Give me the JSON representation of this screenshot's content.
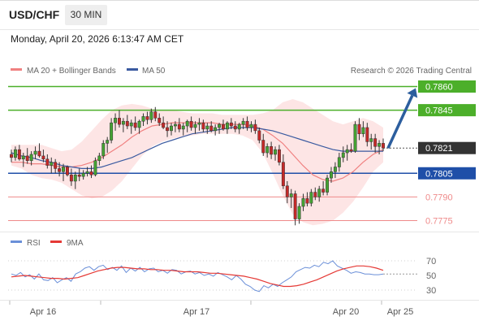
{
  "header": {
    "symbol": "USD/CHF",
    "interval": "30 MIN"
  },
  "timestamp": "Monday, April 20, 2026 6:13:47 AM CET",
  "legend": {
    "ma20_bb": "MA 20 + Bollinger Bands",
    "ma50": "MA 50"
  },
  "copyright": "Research © 2026 Trading Central",
  "rsi_legend": {
    "rsi": "RSI",
    "ma9": "9MA"
  },
  "colors": {
    "bull": "#44a333",
    "bear": "#c62828",
    "ma20": "#f08080",
    "ma50": "#3a5aa0",
    "band": "#fde0e0",
    "resistance": "#4caf2a",
    "support_blue": "#1f4fa8",
    "support_red": "#ef8a8a",
    "arrow": "#2c5e9e",
    "rsi": "#6a8fd8",
    "rsi_ma": "#e53935"
  },
  "chart_data": [
    {
      "type": "candlestick",
      "title": "USD/CHF",
      "ylim": [
        0.7765,
        0.7868
      ],
      "x_ticks": [
        "Apr 16",
        "Apr 17",
        "Apr 20",
        "Apr 25"
      ],
      "current_price": "0.7821",
      "levels": [
        {
          "value": 0.786,
          "label": "0.7860",
          "kind": "resistance"
        },
        {
          "value": 0.7845,
          "label": "0.7845",
          "kind": "resistance"
        },
        {
          "value": 0.7805,
          "label": "0.7805",
          "kind": "support_blue"
        },
        {
          "value": 0.779,
          "label": "0.7790",
          "kind": "support_red"
        },
        {
          "value": 0.7775,
          "label": "0.7775",
          "kind": "support_red"
        }
      ],
      "ohlc": [
        [
          0.7817,
          0.782,
          0.7812,
          0.7815
        ],
        [
          0.7815,
          0.7822,
          0.7813,
          0.782
        ],
        [
          0.782,
          0.7823,
          0.7813,
          0.7814
        ],
        [
          0.7814,
          0.7818,
          0.7809,
          0.7816
        ],
        [
          0.7816,
          0.7821,
          0.7811,
          0.7813
        ],
        [
          0.7813,
          0.7819,
          0.781,
          0.7817
        ],
        [
          0.7817,
          0.7822,
          0.7814,
          0.7819
        ],
        [
          0.7819,
          0.7824,
          0.7815,
          0.7816
        ],
        [
          0.7816,
          0.782,
          0.7812,
          0.7814
        ],
        [
          0.7814,
          0.7817,
          0.7808,
          0.781
        ],
        [
          0.781,
          0.7815,
          0.7805,
          0.7812
        ],
        [
          0.7812,
          0.7814,
          0.7805,
          0.7808
        ],
        [
          0.7808,
          0.7812,
          0.7803,
          0.7806
        ],
        [
          0.7806,
          0.7811,
          0.78,
          0.7809
        ],
        [
          0.7809,
          0.781,
          0.7803,
          0.7804
        ],
        [
          0.7804,
          0.7808,
          0.7797,
          0.78
        ],
        [
          0.78,
          0.7806,
          0.7795,
          0.7804
        ],
        [
          0.7804,
          0.7808,
          0.78,
          0.7803
        ],
        [
          0.7803,
          0.7807,
          0.7801,
          0.7805
        ],
        [
          0.7805,
          0.7809,
          0.7803,
          0.7806
        ],
        [
          0.7806,
          0.781,
          0.7802,
          0.7804
        ],
        [
          0.7804,
          0.7815,
          0.7803,
          0.7813
        ],
        [
          0.7813,
          0.7818,
          0.781,
          0.7816
        ],
        [
          0.7816,
          0.7826,
          0.7814,
          0.7824
        ],
        [
          0.7824,
          0.7828,
          0.7818,
          0.7826
        ],
        [
          0.7826,
          0.784,
          0.7824,
          0.7837
        ],
        [
          0.7837,
          0.7843,
          0.7832,
          0.784
        ],
        [
          0.784,
          0.7845,
          0.7834,
          0.7836
        ],
        [
          0.7836,
          0.784,
          0.7831,
          0.7838
        ],
        [
          0.7838,
          0.7842,
          0.7833,
          0.7835
        ],
        [
          0.7835,
          0.7839,
          0.783,
          0.7837
        ],
        [
          0.7837,
          0.7841,
          0.7832,
          0.7834
        ],
        [
          0.7834,
          0.7839,
          0.783,
          0.7838
        ],
        [
          0.7838,
          0.7843,
          0.7835,
          0.7841
        ],
        [
          0.7841,
          0.7844,
          0.7836,
          0.7839
        ],
        [
          0.7839,
          0.7846,
          0.7837,
          0.7844
        ],
        [
          0.7844,
          0.7847,
          0.7838,
          0.784
        ],
        [
          0.784,
          0.7843,
          0.7835,
          0.7837
        ],
        [
          0.7837,
          0.7841,
          0.7833,
          0.7834
        ],
        [
          0.7834,
          0.7838,
          0.7828,
          0.7832
        ],
        [
          0.7832,
          0.7837,
          0.7829,
          0.7835
        ],
        [
          0.7835,
          0.7838,
          0.7831,
          0.7836
        ],
        [
          0.7836,
          0.784,
          0.7831,
          0.7833
        ],
        [
          0.7833,
          0.7837,
          0.7829,
          0.7835
        ],
        [
          0.7835,
          0.7839,
          0.7831,
          0.7838
        ],
        [
          0.7838,
          0.7841,
          0.7832,
          0.7834
        ],
        [
          0.7834,
          0.7838,
          0.783,
          0.7836
        ],
        [
          0.7836,
          0.784,
          0.7832,
          0.7837
        ],
        [
          0.7837,
          0.7839,
          0.7831,
          0.7833
        ],
        [
          0.7833,
          0.7837,
          0.783,
          0.7835
        ],
        [
          0.7835,
          0.7838,
          0.7831,
          0.7832
        ],
        [
          0.7832,
          0.7836,
          0.7829,
          0.7834
        ],
        [
          0.7834,
          0.7837,
          0.783,
          0.7836
        ],
        [
          0.7836,
          0.7839,
          0.7832,
          0.7833
        ],
        [
          0.7833,
          0.7838,
          0.783,
          0.7837
        ],
        [
          0.7837,
          0.784,
          0.7833,
          0.7835
        ],
        [
          0.7835,
          0.7838,
          0.7831,
          0.7833
        ],
        [
          0.7833,
          0.7837,
          0.783,
          0.7836
        ],
        [
          0.7836,
          0.784,
          0.7833,
          0.7838
        ],
        [
          0.7838,
          0.7841,
          0.7832,
          0.7834
        ],
        [
          0.7834,
          0.7838,
          0.7831,
          0.7836
        ],
        [
          0.7836,
          0.7839,
          0.783,
          0.7832
        ],
        [
          0.7832,
          0.7834,
          0.7824,
          0.7826
        ],
        [
          0.7826,
          0.783,
          0.7816,
          0.7818
        ],
        [
          0.7818,
          0.7824,
          0.7815,
          0.7822
        ],
        [
          0.7822,
          0.7825,
          0.7814,
          0.7817
        ],
        [
          0.7817,
          0.7822,
          0.7813,
          0.782
        ],
        [
          0.782,
          0.7823,
          0.781,
          0.7812
        ],
        [
          0.7812,
          0.7817,
          0.7795,
          0.7797
        ],
        [
          0.7797,
          0.78,
          0.7786,
          0.779
        ],
        [
          0.779,
          0.7795,
          0.7783,
          0.7792
        ],
        [
          0.7792,
          0.7794,
          0.7772,
          0.7776
        ],
        [
          0.7776,
          0.7786,
          0.7773,
          0.7784
        ],
        [
          0.7784,
          0.7792,
          0.7781,
          0.7789
        ],
        [
          0.7789,
          0.7793,
          0.7784,
          0.7786
        ],
        [
          0.7786,
          0.7795,
          0.7784,
          0.7793
        ],
        [
          0.7793,
          0.7796,
          0.7788,
          0.779
        ],
        [
          0.779,
          0.7797,
          0.7787,
          0.7795
        ],
        [
          0.7795,
          0.78,
          0.7791,
          0.7793
        ],
        [
          0.7793,
          0.7804,
          0.7791,
          0.7802
        ],
        [
          0.7802,
          0.7809,
          0.7799,
          0.7806
        ],
        [
          0.7806,
          0.7812,
          0.7802,
          0.7809
        ],
        [
          0.7809,
          0.7818,
          0.7806,
          0.7815
        ],
        [
          0.7815,
          0.7822,
          0.7812,
          0.7818
        ],
        [
          0.7818,
          0.7823,
          0.7813,
          0.782
        ],
        [
          0.782,
          0.7824,
          0.7818,
          0.7819
        ],
        [
          0.7819,
          0.7838,
          0.7818,
          0.7836
        ],
        [
          0.7836,
          0.784,
          0.7826,
          0.783
        ],
        [
          0.783,
          0.7838,
          0.7828,
          0.7834
        ],
        [
          0.7834,
          0.7837,
          0.7822,
          0.7825
        ],
        [
          0.7825,
          0.783,
          0.782,
          0.7827
        ],
        [
          0.7827,
          0.783,
          0.7818,
          0.7822
        ],
        [
          0.7822,
          0.7826,
          0.7817,
          0.7824
        ],
        [
          0.7824,
          0.7827,
          0.7819,
          0.7821
        ]
      ],
      "ma20_bollinger": {
        "ma20": [
          0.7812,
          0.7812,
          0.7811,
          0.7811,
          0.781,
          0.7809,
          0.7809,
          0.781,
          0.7812,
          0.7815,
          0.7819,
          0.7823,
          0.7828,
          0.7832,
          0.7835,
          0.7836,
          0.7837,
          0.7837,
          0.7837,
          0.7837,
          0.7837,
          0.7836,
          0.7836,
          0.7836,
          0.7835,
          0.7833,
          0.7829,
          0.7824,
          0.7817,
          0.781,
          0.7804,
          0.7801,
          0.78,
          0.7802,
          0.7806,
          0.7812,
          0.7817,
          0.782
        ],
        "upper": [
          0.7823,
          0.7823,
          0.7823,
          0.7823,
          0.7821,
          0.7819,
          0.782,
          0.7825,
          0.7832,
          0.7839,
          0.7845,
          0.7848,
          0.7849,
          0.7848,
          0.7846,
          0.7845,
          0.7845,
          0.7844,
          0.7843,
          0.7843,
          0.7843,
          0.7842,
          0.7842,
          0.7842,
          0.7842,
          0.7843,
          0.7845,
          0.785,
          0.7852,
          0.785,
          0.7846,
          0.7842,
          0.7838,
          0.7836,
          0.7838,
          0.784,
          0.7838,
          0.7834
        ],
        "lower": [
          0.781,
          0.7808,
          0.7804,
          0.7802,
          0.7801,
          0.7799,
          0.7795,
          0.7791,
          0.7789,
          0.779,
          0.7794,
          0.78,
          0.7808,
          0.7816,
          0.7822,
          0.7825,
          0.7827,
          0.7828,
          0.7829,
          0.783,
          0.783,
          0.783,
          0.783,
          0.7829,
          0.7826,
          0.7818,
          0.7805,
          0.7791,
          0.7779,
          0.7774,
          0.7772,
          0.7773,
          0.7775,
          0.778,
          0.7787,
          0.7796,
          0.7806,
          0.7812
        ]
      },
      "ma50": [
        0.7818,
        0.7816,
        0.7815,
        0.7813,
        0.7812,
        0.781,
        0.7809,
        0.7808,
        0.7808,
        0.7809,
        0.7811,
        0.7813,
        0.7815,
        0.7818,
        0.7821,
        0.7824,
        0.7826,
        0.7828,
        0.783,
        0.7831,
        0.7832,
        0.7833,
        0.7834,
        0.7834,
        0.7834,
        0.7833,
        0.7832,
        0.783,
        0.7828,
        0.7826,
        0.7824,
        0.7822,
        0.782,
        0.7819,
        0.7819,
        0.7819,
        0.7819,
        0.7819
      ],
      "forecast_arrow": {
        "from": 0.7821,
        "to": 0.786
      }
    },
    {
      "type": "line",
      "title": "RSI",
      "ylim": [
        20,
        80
      ],
      "y_ticks": [
        "70",
        "50",
        "30"
      ],
      "series": [
        {
          "name": "RSI",
          "values": [
            52,
            50,
            54,
            48,
            51,
            45,
            52,
            44,
            43,
            47,
            40,
            44,
            47,
            42,
            52,
            55,
            60,
            62,
            57,
            62,
            64,
            58,
            61,
            57,
            63,
            54,
            60,
            56,
            61,
            55,
            59,
            60,
            55,
            57,
            53,
            58,
            57,
            52,
            55,
            56,
            52,
            54,
            50,
            52,
            49,
            54,
            51,
            48,
            44,
            50,
            45,
            38,
            35,
            30,
            28,
            36,
            33,
            38,
            35,
            40,
            44,
            48,
            55,
            58,
            61,
            60,
            64,
            62,
            68,
            66,
            70,
            63,
            60,
            57,
            53,
            55,
            54,
            52,
            52,
            51,
            51,
            52
          ]
        },
        {
          "name": "9MA",
          "values": [
            48,
            49,
            50,
            49,
            48,
            47,
            46,
            46,
            45,
            46,
            47,
            50,
            53,
            56,
            58,
            60,
            61,
            61,
            60,
            59,
            59,
            58,
            58,
            57,
            57,
            56,
            55,
            55,
            55,
            54,
            53,
            53,
            52,
            51,
            50,
            49,
            47,
            45,
            42,
            39,
            37,
            35,
            35,
            36,
            38,
            41,
            44,
            48,
            52,
            56,
            59,
            61,
            63,
            63,
            62,
            60,
            57
          ]
        }
      ]
    }
  ]
}
